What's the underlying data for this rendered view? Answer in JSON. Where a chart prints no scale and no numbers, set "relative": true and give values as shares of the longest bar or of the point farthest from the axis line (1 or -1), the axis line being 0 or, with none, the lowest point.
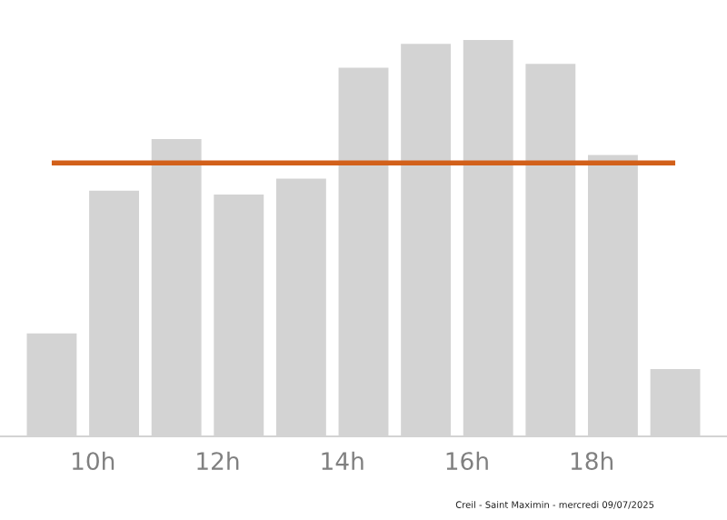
{
  "chart_data": {
    "type": "bar",
    "relative": true,
    "x": [
      9.34,
      10.34,
      11.34,
      12.34,
      13.34,
      14.34,
      15.34,
      16.34,
      17.34,
      18.34,
      19.34
    ],
    "values": [
      0.26,
      0.62,
      0.75,
      0.61,
      0.65,
      0.93,
      0.99,
      1,
      0.94,
      0.71,
      0.17
    ],
    "color": "#d3d3d3",
    "xlim": [
      8.51,
      20.17
    ],
    "xticks": [
      {
        "value": 10,
        "label": "10h"
      },
      {
        "value": 12,
        "label": "12h"
      },
      {
        "value": 14,
        "label": "14h"
      },
      {
        "value": 16,
        "label": "16h"
      },
      {
        "value": 18,
        "label": "18h"
      }
    ],
    "tick_labels": "x",
    "grid": false,
    "ref_lines": [
      {
        "axis": "y",
        "value": 0.69,
        "color": "#d2601a"
      }
    ],
    "annotations": [
      "Creil - Saint Maximin - mercredi 09/07/2025"
    ]
  }
}
